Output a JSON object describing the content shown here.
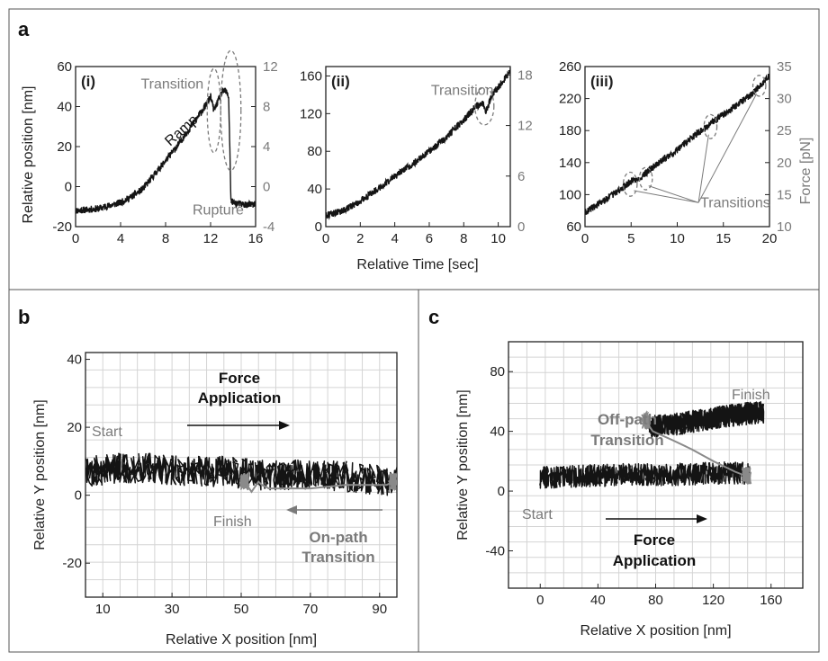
{
  "panels": {
    "a": {
      "letter": "a",
      "xlabel": "Relative Time [sec]",
      "ylabel_left": "Relative position [nm]",
      "ylabel_right": "Force [pN]"
    },
    "b": {
      "letter": "b"
    },
    "c": {
      "letter": "c"
    }
  },
  "colors": {
    "trace": "#141414",
    "transition": "#8a8a8a",
    "annotation": "#7a7a7a",
    "frame": "#555555",
    "grid": "#d4d4d4"
  },
  "chart_data": [
    {
      "id": "a-i",
      "type": "line",
      "panel_label": "(i)",
      "x_ticks": [
        "0",
        "4",
        "8",
        "12",
        "16"
      ],
      "y_ticks": [
        "-20",
        "0",
        "20",
        "40",
        "60"
      ],
      "y2_ticks": [
        "-4",
        "0",
        "4",
        "8",
        "12"
      ],
      "xlim": [
        0,
        16
      ],
      "ylim": [
        -20,
        60
      ],
      "y2lim": [
        -4,
        12
      ],
      "series": [
        {
          "x": [
            0,
            2,
            4,
            5,
            6,
            7,
            8,
            9,
            10,
            11,
            11.5,
            12,
            12.3,
            12.6,
            13,
            13.3,
            13.6,
            13.75,
            13.8,
            14,
            15,
            16
          ],
          "y": [
            -12,
            -11,
            -8,
            -5,
            -1,
            6,
            13,
            20,
            28,
            36,
            40,
            45,
            38,
            42,
            47,
            48,
            45,
            10,
            -7,
            -8,
            -9,
            -9
          ]
        }
      ],
      "annotations": [
        {
          "text": "Transition",
          "x": 5.8,
          "y": 49
        },
        {
          "text": "Ramp",
          "x": 8.4,
          "y": 20,
          "rotate": -42
        },
        {
          "text": "Rupture",
          "x": 10.4,
          "y": -14
        }
      ],
      "ellipses": [
        {
          "x": 12.3,
          "y": 38,
          "rx": 0.6,
          "ry": 21
        },
        {
          "x": 13.8,
          "y": 38,
          "rx": 0.9,
          "ry": 30
        }
      ],
      "grid": false
    },
    {
      "id": "a-ii",
      "type": "line",
      "panel_label": "(ii)",
      "x_ticks": [
        "0",
        "2",
        "4",
        "6",
        "8",
        "10"
      ],
      "y_ticks": [
        "0",
        "40",
        "80",
        "120",
        "160"
      ],
      "y2_ticks": [
        "0",
        "6",
        "12",
        "18"
      ],
      "xlim": [
        0,
        10.7
      ],
      "ylim": [
        0,
        170
      ],
      "y2lim": [
        0,
        19
      ],
      "series": [
        {
          "x": [
            0,
            1,
            2,
            3,
            4,
            5,
            6,
            7,
            8,
            8.7,
            9.1,
            9.3,
            9.6,
            10,
            10.7
          ],
          "y": [
            12,
            17,
            27,
            40,
            53,
            66,
            80,
            95,
            113,
            128,
            131,
            122,
            138,
            148,
            165
          ]
        }
      ],
      "annotations": [
        {
          "text": "Transition",
          "x": 6.1,
          "y": 140
        }
      ],
      "ellipses": [
        {
          "x": 9.2,
          "y": 128,
          "rx": 0.55,
          "ry": 20
        }
      ],
      "grid": false
    },
    {
      "id": "a-iii",
      "type": "line",
      "panel_label": "(iii)",
      "x_ticks": [
        "0",
        "5",
        "10",
        "15",
        "20"
      ],
      "y_ticks": [
        "60",
        "100",
        "140",
        "180",
        "220",
        "260"
      ],
      "y2_ticks": [
        "10",
        "15",
        "20",
        "25",
        "30",
        "35"
      ],
      "xlim": [
        0,
        20
      ],
      "ylim": [
        60,
        260
      ],
      "y2lim": [
        10,
        35
      ],
      "series": [
        {
          "x": [
            0,
            2,
            4,
            5,
            6,
            8,
            10,
            12,
            13.3,
            14,
            16,
            18,
            18.6,
            19,
            20
          ],
          "y": [
            78,
            92,
            108,
            117,
            121,
            140,
            156,
            175,
            185,
            192,
            208,
            225,
            232,
            236,
            248
          ]
        }
      ],
      "annotations": [
        {
          "text": "Transitions",
          "x": 12.5,
          "y": 84
        }
      ],
      "ellipses": [
        {
          "x": 4.9,
          "y": 113,
          "rx": 0.75,
          "ry": 15
        },
        {
          "x": 6.6,
          "y": 120,
          "rx": 0.7,
          "ry": 14
        },
        {
          "x": 13.6,
          "y": 185,
          "rx": 0.7,
          "ry": 15
        },
        {
          "x": 18.9,
          "y": 236,
          "rx": 0.7,
          "ry": 13
        }
      ],
      "grid": false
    },
    {
      "id": "b",
      "type": "scatter",
      "xlabel": "Relative X position [nm]",
      "ylabel": "Relative Y position [nm]",
      "x_ticks": [
        "10",
        "30",
        "50",
        "70",
        "90"
      ],
      "y_ticks": [
        "-20",
        "0",
        "20",
        "40"
      ],
      "xlim": [
        5,
        95
      ],
      "ylim": [
        -30,
        42
      ],
      "grid": true,
      "band": {
        "x": [
          5,
          15,
          25,
          35,
          45,
          55,
          65,
          75,
          85,
          95
        ],
        "y": [
          7,
          8,
          8,
          7,
          7,
          6,
          6,
          6,
          5,
          4
        ]
      },
      "transition": {
        "x": [
          51,
          53,
          55,
          56,
          58,
          70,
          80,
          92,
          94
        ],
        "y": [
          4,
          1,
          4,
          3,
          2,
          2,
          3,
          3,
          4
        ]
      },
      "labels": {
        "start": "Start",
        "finish": "Finish",
        "force": [
          "Force",
          "Application"
        ],
        "transition": [
          "On-path",
          "Transition"
        ]
      }
    },
    {
      "id": "c",
      "type": "scatter",
      "xlabel": "Relative X position [nm]",
      "ylabel": "Relative Y position [nm]",
      "x_ticks": [
        "0",
        "40",
        "80",
        "120",
        "160"
      ],
      "y_ticks": [
        "-40",
        "0",
        "40",
        "80"
      ],
      "xlim": [
        -22,
        182
      ],
      "ylim": [
        -65,
        100
      ],
      "grid": true,
      "bands": [
        {
          "x": [
            0,
            30,
            60,
            90,
            120,
            145
          ],
          "y": [
            9,
            10,
            11,
            11,
            12,
            12
          ]
        },
        {
          "x": [
            76,
            95,
            115,
            135,
            155
          ],
          "y": [
            43,
            45,
            48,
            51,
            53
          ]
        }
      ],
      "transition": {
        "x": [
          143,
          135,
          120,
          105,
          92,
          78,
          73
        ],
        "y": [
          10,
          13,
          20,
          28,
          34,
          40,
          47
        ]
      },
      "labels": {
        "start": "Start",
        "finish": "Finish",
        "force": [
          "Force",
          "Application"
        ],
        "transition": [
          "Off-path",
          "Transition"
        ]
      }
    }
  ]
}
